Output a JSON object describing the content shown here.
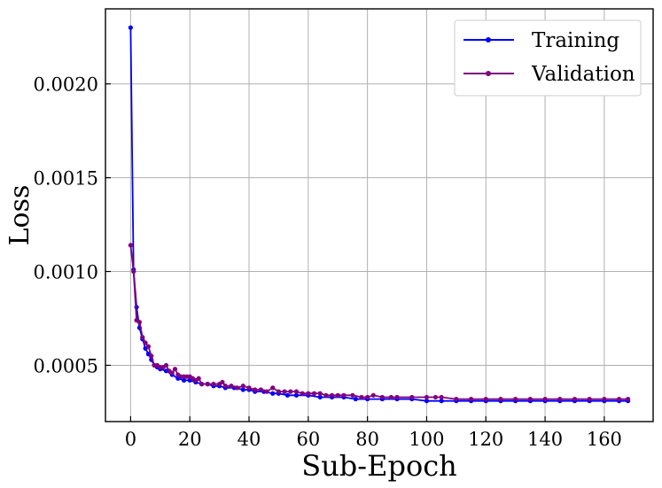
{
  "chart_data": {
    "type": "line",
    "title": "",
    "xlabel": "Sub-Epoch",
    "ylabel": "Loss",
    "xlim": [
      -8.5,
      176.5
    ],
    "ylim": [
      0.0002,
      0.0024
    ],
    "xticks": [
      0,
      20,
      40,
      60,
      80,
      100,
      120,
      140,
      160
    ],
    "xtick_labels": [
      "0",
      "20",
      "40",
      "60",
      "80",
      "100",
      "120",
      "140",
      "160"
    ],
    "yticks": [
      0.0005,
      0.001,
      0.0015,
      0.002
    ],
    "ytick_labels": [
      "0.0005",
      "0.0010",
      "0.0015",
      "0.0020"
    ],
    "grid": true,
    "legend_position": "top-right",
    "series": [
      {
        "name": "Training",
        "color": "#0000ff",
        "marker": "circle",
        "x": [
          0,
          1,
          2,
          3,
          4,
          5,
          6,
          7,
          8,
          9,
          10,
          12,
          14,
          16,
          18,
          20,
          22,
          24,
          26,
          28,
          30,
          32,
          35,
          38,
          40,
          42,
          45,
          48,
          50,
          53,
          56,
          60,
          64,
          68,
          72,
          76,
          80,
          85,
          90,
          95,
          100,
          105,
          110,
          115,
          120,
          125,
          130,
          135,
          140,
          145,
          150,
          155,
          160,
          165,
          168
        ],
        "y": [
          0.0023,
          0.00101,
          0.00081,
          0.0007,
          0.00064,
          0.00059,
          0.00056,
          0.00053,
          0.0005,
          0.00049,
          0.00048,
          0.00047,
          0.00045,
          0.00043,
          0.00042,
          0.00042,
          0.00041,
          0.0004,
          0.0004,
          0.00039,
          0.00039,
          0.00038,
          0.00038,
          0.00037,
          0.00037,
          0.00036,
          0.00036,
          0.00035,
          0.00035,
          0.00034,
          0.00034,
          0.00034,
          0.00033,
          0.00033,
          0.00033,
          0.00032,
          0.00032,
          0.00032,
          0.00032,
          0.00032,
          0.00031,
          0.00031,
          0.00031,
          0.00031,
          0.00031,
          0.00031,
          0.00031,
          0.00031,
          0.00031,
          0.00031,
          0.00031,
          0.00031,
          0.00031,
          0.00031,
          0.00031
        ]
      },
      {
        "name": "Validation",
        "color": "#800080",
        "marker": "circle",
        "x": [
          0,
          1,
          2,
          3,
          4,
          5,
          6,
          7,
          8,
          9,
          10,
          11,
          12,
          13,
          14,
          15,
          16,
          17,
          18,
          19,
          20,
          21,
          22,
          23,
          24,
          26,
          28,
          30,
          31,
          32,
          34,
          36,
          38,
          40,
          42,
          44,
          46,
          48,
          50,
          52,
          54,
          56,
          58,
          60,
          62,
          64,
          66,
          68,
          70,
          72,
          75,
          78,
          80,
          82,
          85,
          88,
          90,
          95,
          100,
          103,
          105,
          110,
          115,
          120,
          125,
          130,
          135,
          140,
          145,
          150,
          155,
          160,
          165,
          168
        ],
        "y": [
          0.00114,
          0.001,
          0.00074,
          0.00073,
          0.00065,
          0.00062,
          0.0006,
          0.00055,
          0.0005,
          0.0005,
          0.00049,
          0.00049,
          0.0005,
          0.00047,
          0.00046,
          0.00048,
          0.00045,
          0.00044,
          0.00044,
          0.00044,
          0.00044,
          0.00043,
          0.00042,
          0.00043,
          0.0004,
          0.0004,
          0.0004,
          0.0004,
          0.00041,
          0.00039,
          0.00039,
          0.00038,
          0.00039,
          0.00038,
          0.00037,
          0.00037,
          0.00036,
          0.00038,
          0.00036,
          0.00036,
          0.00036,
          0.00036,
          0.00035,
          0.00035,
          0.00035,
          0.00035,
          0.00034,
          0.00034,
          0.00034,
          0.00034,
          0.00034,
          0.00033,
          0.00033,
          0.00034,
          0.00033,
          0.00033,
          0.00033,
          0.00033,
          0.00033,
          0.00033,
          0.00033,
          0.00032,
          0.00032,
          0.00032,
          0.00032,
          0.00032,
          0.00032,
          0.00032,
          0.00032,
          0.00032,
          0.00032,
          0.00032,
          0.00032,
          0.00032
        ]
      }
    ]
  }
}
